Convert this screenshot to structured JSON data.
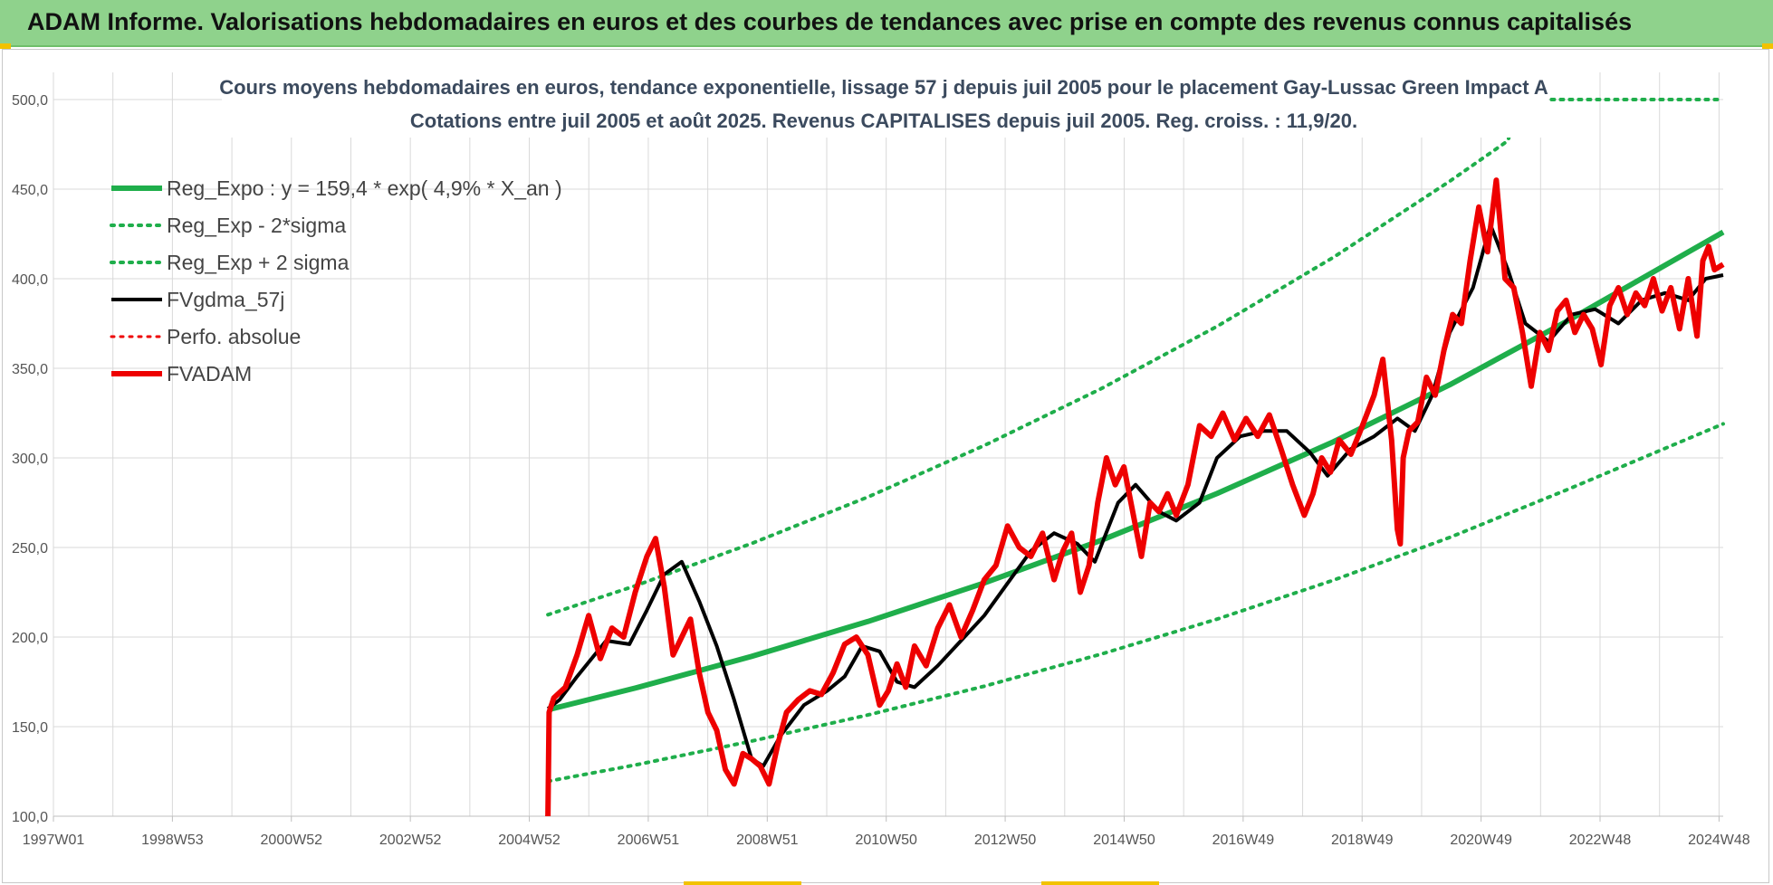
{
  "banner": {
    "title": "ADAM Informe. Valorisations hebdomadaires en euros et des courbes de tendances avec prise en compte des revenus connus capitalisés"
  },
  "colors": {
    "banner_bg": "#8fd28c",
    "trend_green": "#1fae4b",
    "black_line": "#000000",
    "red_line": "#ee0000"
  },
  "chart_data": {
    "type": "line",
    "title": [
      "Cours moyens hebdomadaires en euros, tendance exponentielle, lissage 57 j depuis juil 2005 pour le placement Gay-Lussac Green Impact A",
      "Cotations entre juil 2005 et août 2025. Revenus CAPITALISES depuis juil 2005. Reg. croiss. : 11,9/20."
    ],
    "x_tick_labels": [
      "1997W01",
      "1998W53",
      "2000W52",
      "2002W52",
      "2004W52",
      "2006W51",
      "2008W51",
      "2010W50",
      "2012W50",
      "2014W50",
      "2016W49",
      "2018W49",
      "2020W49",
      "2022W48",
      "2024W48"
    ],
    "x_range": [
      1997.0,
      2025.7
    ],
    "y_tick_labels": [
      "100,0",
      "150,0",
      "200,0",
      "250,0",
      "300,0",
      "350,0",
      "400,0",
      "450,0",
      "500,0"
    ],
    "ylim": [
      100,
      500
    ],
    "grid": true,
    "legend_position": "top-left",
    "legend": [
      {
        "label": "Reg_Expo : y = 159,4 * exp( 4,9% *  X_an )",
        "style": "solid",
        "color": "#1fae4b",
        "width": 6
      },
      {
        "label": "Reg_Exp - 2*sigma",
        "style": "dotted",
        "color": "#1fae4b",
        "width": 4
      },
      {
        "label": "Reg_Exp + 2 sigma",
        "style": "dotted",
        "color": "#1fae4b",
        "width": 4
      },
      {
        "label": "FVgdma_57j",
        "style": "solid",
        "color": "#000000",
        "width": 4
      },
      {
        "label": "Perfo. absolue",
        "style": "dotted",
        "color": "#ee0000",
        "width": 3
      },
      {
        "label": "FVADAM",
        "style": "solid",
        "color": "#ee0000",
        "width": 6
      }
    ],
    "series": [
      {
        "name": "Reg_Expo : y = 159,4 * exp( 4,9% *  X_an )",
        "x": [
          2005.5,
          2007,
          2009,
          2011,
          2013,
          2015,
          2017,
          2019,
          2021,
          2023,
          2025.7
        ],
        "y": [
          159.4,
          171.5,
          189.2,
          208.7,
          230.2,
          253.9,
          280.1,
          309.0,
          340.8,
          376.0,
          426.0
        ]
      },
      {
        "name": "Reg_Exp - 2*sigma",
        "x": [
          2005.5,
          2007,
          2009,
          2011,
          2013,
          2015,
          2017,
          2019,
          2021,
          2023,
          2025.7
        ],
        "y": [
          119.5,
          128.6,
          141.9,
          156.5,
          172.6,
          190.4,
          210.0,
          231.7,
          255.6,
          282.0,
          319.0
        ]
      },
      {
        "name": "Reg_Exp + 2 sigma",
        "x": [
          2005.5,
          2007,
          2009,
          2011,
          2013,
          2015,
          2017,
          2019,
          2021,
          2022,
          2022.2,
          2025.7
        ],
        "y": [
          212.5,
          228.6,
          252.2,
          278.2,
          306.9,
          338.5,
          373.4,
          411.9,
          454.4,
          477.0,
          500.0,
          500.0
        ]
      },
      {
        "name": "FVgdma_57j",
        "x": [
          2005.5,
          2005.7,
          2006.0,
          2006.5,
          2006.9,
          2007.2,
          2007.5,
          2007.8,
          2008.1,
          2008.4,
          2008.7,
          2009.0,
          2009.2,
          2009.5,
          2009.9,
          2010.3,
          2010.6,
          2010.9,
          2011.2,
          2011.5,
          2011.8,
          2012.2,
          2012.6,
          2013.0,
          2013.4,
          2013.8,
          2014.2,
          2014.6,
          2014.9,
          2015.3,
          2015.6,
          2016.0,
          2016.3,
          2016.7,
          2017.0,
          2017.4,
          2017.8,
          2018.2,
          2018.6,
          2018.9,
          2019.3,
          2019.7,
          2020.1,
          2020.4,
          2020.7,
          2021.0,
          2021.4,
          2021.7,
          2022.0,
          2022.3,
          2022.7,
          2023.1,
          2023.5,
          2023.9,
          2024.3,
          2024.7,
          2025.1,
          2025.4,
          2025.7
        ],
        "y": [
          160,
          165,
          178,
          198,
          196,
          215,
          235,
          242,
          220,
          195,
          165,
          132,
          128,
          145,
          162,
          170,
          178,
          195,
          192,
          175,
          172,
          184,
          198,
          212,
          230,
          248,
          258,
          252,
          242,
          275,
          285,
          270,
          265,
          275,
          300,
          312,
          315,
          315,
          303,
          290,
          305,
          312,
          322,
          315,
          335,
          370,
          395,
          430,
          405,
          375,
          365,
          380,
          383,
          375,
          388,
          392,
          388,
          400,
          402
        ]
      },
      {
        "name": "FVADAM",
        "x": [
          2005.5,
          2005.52,
          2005.6,
          2005.8,
          2006.0,
          2006.2,
          2006.4,
          2006.6,
          2006.8,
          2007.0,
          2007.2,
          2007.35,
          2007.5,
          2007.65,
          2007.8,
          2007.95,
          2008.1,
          2008.25,
          2008.4,
          2008.55,
          2008.7,
          2008.85,
          2009.0,
          2009.15,
          2009.3,
          2009.45,
          2009.6,
          2009.8,
          2010.0,
          2010.2,
          2010.4,
          2010.6,
          2010.8,
          2011.0,
          2011.2,
          2011.35,
          2011.5,
          2011.65,
          2011.8,
          2012.0,
          2012.2,
          2012.4,
          2012.6,
          2012.8,
          2013.0,
          2013.2,
          2013.4,
          2013.6,
          2013.8,
          2014.0,
          2014.2,
          2014.35,
          2014.5,
          2014.65,
          2014.8,
          2014.95,
          2015.1,
          2015.25,
          2015.4,
          2015.55,
          2015.7,
          2015.85,
          2016.0,
          2016.15,
          2016.3,
          2016.5,
          2016.7,
          2016.9,
          2017.1,
          2017.3,
          2017.5,
          2017.7,
          2017.9,
          2018.1,
          2018.3,
          2018.5,
          2018.65,
          2018.8,
          2018.95,
          2019.1,
          2019.3,
          2019.5,
          2019.7,
          2019.85,
          2020.0,
          2020.1,
          2020.15,
          2020.2,
          2020.3,
          2020.45,
          2020.6,
          2020.75,
          2020.9,
          2021.05,
          2021.2,
          2021.35,
          2021.5,
          2021.65,
          2021.8,
          2021.95,
          2022.1,
          2022.25,
          2022.4,
          2022.55,
          2022.7,
          2022.85,
          2023.0,
          2023.15,
          2023.3,
          2023.45,
          2023.6,
          2023.75,
          2023.9,
          2024.05,
          2024.2,
          2024.35,
          2024.5,
          2024.65,
          2024.8,
          2024.95,
          2025.1,
          2025.25,
          2025.35,
          2025.45,
          2025.55,
          2025.7
        ],
        "y": [
          100,
          158,
          166,
          172,
          190,
          212,
          188,
          205,
          200,
          225,
          245,
          255,
          228,
          190,
          200,
          210,
          180,
          158,
          148,
          126,
          118,
          135,
          132,
          128,
          118,
          140,
          158,
          165,
          170,
          168,
          180,
          196,
          200,
          190,
          162,
          170,
          185,
          172,
          195,
          184,
          205,
          218,
          200,
          215,
          232,
          240,
          262,
          250,
          245,
          258,
          232,
          248,
          258,
          225,
          240,
          275,
          300,
          285,
          295,
          270,
          245,
          275,
          270,
          280,
          268,
          285,
          318,
          312,
          325,
          310,
          322,
          312,
          324,
          305,
          285,
          268,
          280,
          300,
          292,
          310,
          302,
          318,
          335,
          355,
          310,
          260,
          252,
          300,
          315,
          320,
          345,
          335,
          360,
          380,
          375,
          410,
          440,
          415,
          455,
          400,
          395,
          370,
          340,
          370,
          360,
          382,
          388,
          370,
          380,
          372,
          352,
          385,
          395,
          380,
          392,
          385,
          400,
          382,
          395,
          372,
          400,
          368,
          410,
          418,
          405,
          408
        ]
      }
    ]
  }
}
